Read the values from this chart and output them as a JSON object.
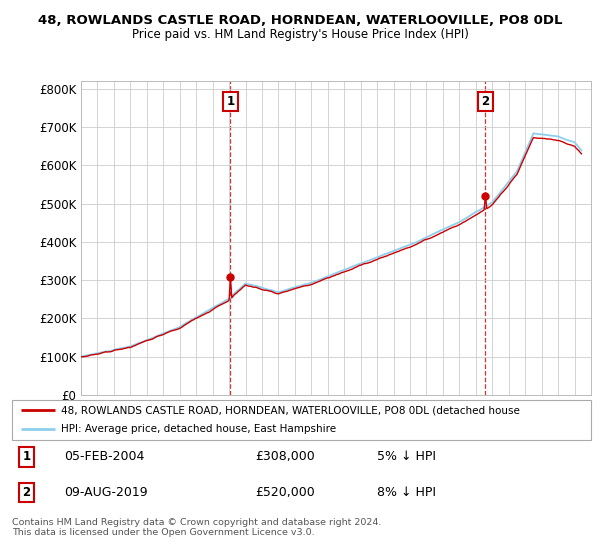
{
  "title_line1": "48, ROWLANDS CASTLE ROAD, HORNDEAN, WATERLOOVILLE, PO8 0DL",
  "title_line2": "Price paid vs. HM Land Registry's House Price Index (HPI)",
  "background_color": "#ffffff",
  "plot_bg_color": "#ffffff",
  "grid_color": "#cccccc",
  "hpi_color": "#8dcfee",
  "price_color": "#cc0000",
  "legend_line1": "48, ROWLANDS CASTLE ROAD, HORNDEAN, WATERLOOVILLE, PO8 0DL (detached house",
  "legend_line2": "HPI: Average price, detached house, East Hampshire",
  "footnote": "Contains HM Land Registry data © Crown copyright and database right 2024.\nThis data is licensed under the Open Government Licence v3.0.",
  "annotation1_date": "05-FEB-2004",
  "annotation1_price": "£308,000",
  "annotation1_pct": "5% ↓ HPI",
  "annotation2_date": "09-AUG-2019",
  "annotation2_price": "£520,000",
  "annotation2_pct": "8% ↓ HPI",
  "ylim_min": 0,
  "ylim_max": 820000,
  "yticks": [
    0,
    100000,
    200000,
    300000,
    400000,
    500000,
    600000,
    700000,
    800000
  ],
  "ytick_labels": [
    "£0",
    "£100K",
    "£200K",
    "£300K",
    "£400K",
    "£500K",
    "£600K",
    "£700K",
    "£800K"
  ],
  "start_year": 1995,
  "end_year": 2026,
  "m1_idx": 109,
  "m1_price": 308000,
  "m2_idx": 295,
  "m2_price": 520000
}
